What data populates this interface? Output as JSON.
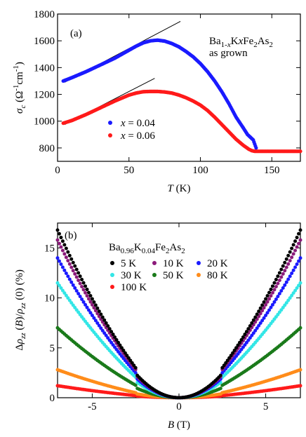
{
  "chart_data": [
    {
      "type": "scatter",
      "panel_label": "(a)",
      "annotation_line1": "Ba1-xKxFe2As2",
      "annotation_line2": "as grown",
      "xlabel": "T (K)",
      "ylabel": "σc (Ω-1cm-1)",
      "xlim": [
        0,
        170
      ],
      "ylim": [
        700,
        1800
      ],
      "xticks": [
        0,
        50,
        100,
        150
      ],
      "yticks": [
        800,
        1000,
        1200,
        1400,
        1600,
        1800
      ],
      "series": [
        {
          "name": "x = 0.04",
          "color": "#1a1aff",
          "x": [
            4,
            10,
            20,
            30,
            40,
            50,
            55,
            60,
            65,
            70,
            75,
            80,
            85,
            90,
            95,
            100,
            105,
            110,
            115,
            120,
            125,
            130,
            133,
            135,
            137,
            138,
            139
          ],
          "y": [
            1300,
            1325,
            1370,
            1420,
            1470,
            1530,
            1560,
            1585,
            1600,
            1605,
            1598,
            1580,
            1555,
            1520,
            1480,
            1430,
            1370,
            1300,
            1220,
            1130,
            1030,
            950,
            900,
            880,
            860,
            830,
            800
          ]
        },
        {
          "name": "x = 0.06",
          "color": "#ff1a1a",
          "x": [
            4,
            10,
            20,
            30,
            40,
            50,
            55,
            60,
            65,
            70,
            75,
            80,
            85,
            90,
            95,
            100,
            105,
            110,
            115,
            120,
            125,
            130,
            134,
            136,
            138,
            140,
            145,
            150,
            155,
            160,
            165,
            170
          ],
          "y": [
            985,
            1005,
            1050,
            1100,
            1150,
            1195,
            1210,
            1220,
            1222,
            1222,
            1218,
            1210,
            1195,
            1175,
            1150,
            1120,
            1080,
            1030,
            975,
            920,
            865,
            820,
            790,
            780,
            775,
            775,
            775,
            775,
            775,
            775,
            775,
            775
          ]
        }
      ],
      "fit_lines": [
        {
          "x": [
            5,
            86
          ],
          "y": [
            1290,
            1745
          ]
        },
        {
          "x": [
            5,
            68
          ],
          "y": [
            975,
            1320
          ]
        }
      ]
    },
    {
      "type": "scatter",
      "panel_label": "(b)",
      "annotation": "Ba0.96K0.04Fe2As2",
      "xlabel": "B (T)",
      "ylabel": "Δρzz (B)/ρzz (0) (%)",
      "xlim": [
        -7,
        7
      ],
      "ylim": [
        0,
        17.5
      ],
      "xticks": [
        -5,
        0,
        5
      ],
      "yticks": [
        0,
        5,
        10,
        15
      ],
      "series": [
        {
          "name": "5 K",
          "color": "#000000",
          "max_value": 16.8
        },
        {
          "name": "10 K",
          "color": "#8b1a7a",
          "max_value": 15.8
        },
        {
          "name": "20 K",
          "color": "#1a1aff",
          "max_value": 14.0
        },
        {
          "name": "30 K",
          "color": "#33e6e6",
          "max_value": 11.5
        },
        {
          "name": "50 K",
          "color": "#1a7a1a",
          "max_value": 7.0
        },
        {
          "name": "80 K",
          "color": "#ff8c1a",
          "max_value": 2.8
        },
        {
          "name": "100 K",
          "color": "#ff1a1a",
          "max_value": 1.2
        }
      ],
      "b_max": 7
    }
  ]
}
